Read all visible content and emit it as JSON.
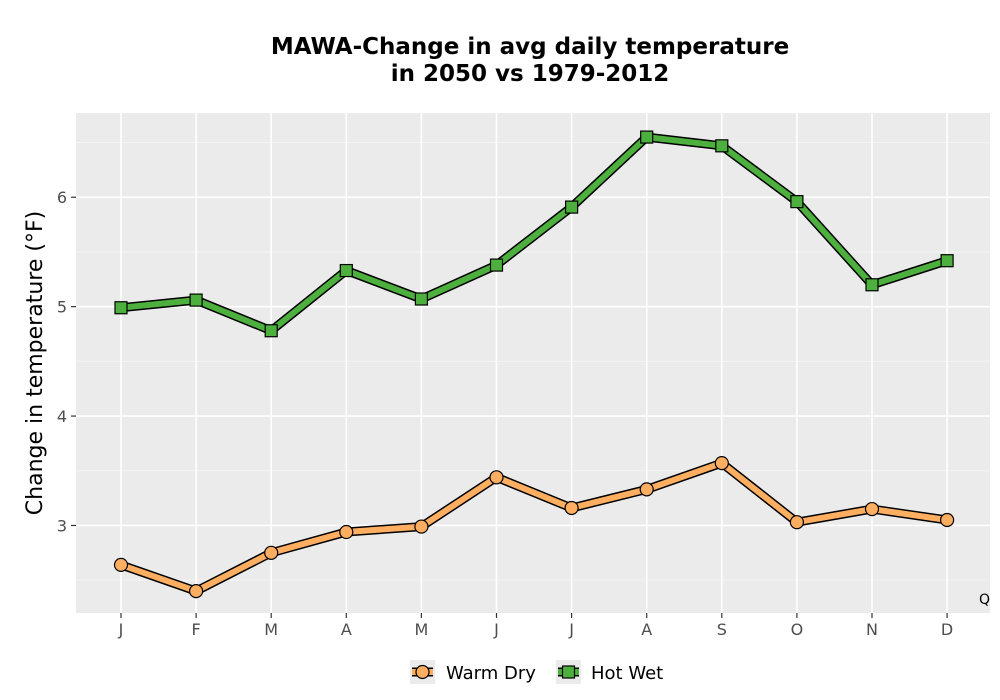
{
  "chart_data": {
    "type": "line",
    "title_lines": [
      "MAWA-Change in avg daily temperature",
      "in 2050 vs 1979-2012"
    ],
    "xlabel": "",
    "ylabel": "Change in temperature (°F)",
    "categories": [
      "J",
      "F",
      "M",
      "A",
      "M",
      "J",
      "J",
      "A",
      "S",
      "O",
      "N",
      "D"
    ],
    "ylim": [
      2.2,
      6.77
    ],
    "yticks": [
      3,
      4,
      5,
      6
    ],
    "grid": true,
    "legend_position": "bottom",
    "corner_label": "Q",
    "series": [
      {
        "name": "Warm Dry",
        "marker": "circle",
        "color": "#fdae61",
        "values": [
          2.64,
          2.4,
          2.75,
          2.94,
          2.99,
          3.44,
          3.16,
          3.33,
          3.57,
          3.03,
          3.15,
          3.05
        ]
      },
      {
        "name": "Hot Wet",
        "marker": "square",
        "color": "#4daf3d",
        "values": [
          4.99,
          5.06,
          4.78,
          5.33,
          5.07,
          5.38,
          5.91,
          6.55,
          6.47,
          5.96,
          5.2,
          5.42
        ]
      }
    ]
  }
}
